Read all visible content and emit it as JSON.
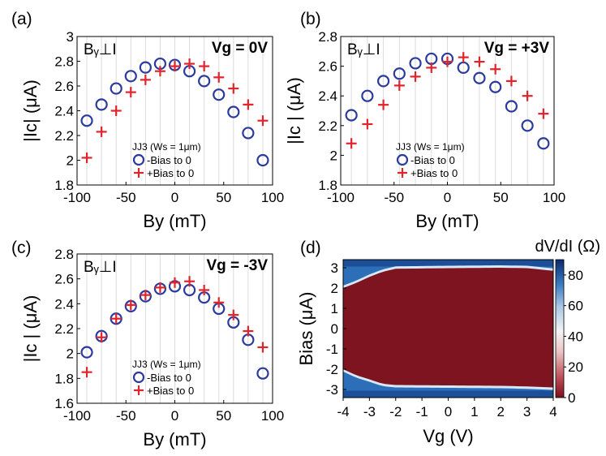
{
  "chart_data": [
    {
      "type": "scatter",
      "panel_label": "(a)",
      "annotation": "Bᵧ⊥I",
      "gate_label": "Vg = 0V",
      "legend_title": "JJ3 (Ws = 1μm)",
      "xlabel": "By (mT)",
      "ylabel": "|Ic| (μA)",
      "xlim": [
        -100,
        100
      ],
      "ylim": [
        1.8,
        3.0
      ],
      "xticks": [
        -100,
        -50,
        0,
        50,
        100
      ],
      "yticks": [
        1.8,
        2.0,
        2.2,
        2.4,
        2.6,
        2.8,
        3.0
      ],
      "ytick_labels": [
        "1.8",
        "2",
        "2.2",
        "2.4",
        "2.6",
        "2.8",
        "3"
      ],
      "series": [
        {
          "name": "-Bias to 0",
          "marker": "circle",
          "x": [
            -90,
            -75,
            -60,
            -45,
            -30,
            -15,
            0,
            15,
            30,
            45,
            60,
            75,
            90
          ],
          "y": [
            2.32,
            2.45,
            2.58,
            2.68,
            2.75,
            2.78,
            2.77,
            2.72,
            2.64,
            2.53,
            2.39,
            2.22,
            2.0
          ]
        },
        {
          "name": "+Bias to 0",
          "marker": "plus",
          "x": [
            -90,
            -75,
            -60,
            -45,
            -30,
            -15,
            0,
            15,
            30,
            45,
            60,
            75,
            90
          ],
          "y": [
            2.02,
            2.23,
            2.4,
            2.55,
            2.65,
            2.72,
            2.76,
            2.78,
            2.76,
            2.67,
            2.58,
            2.45,
            2.32
          ]
        }
      ]
    },
    {
      "type": "scatter",
      "panel_label": "(b)",
      "annotation": "Bᵧ⊥I",
      "gate_label": "Vg = +3V",
      "legend_title": "JJ3 (Ws = 1μm)",
      "xlabel": "By (mT)",
      "ylabel": "|Ic | (μA)",
      "xlim": [
        -100,
        100
      ],
      "ylim": [
        1.8,
        2.8
      ],
      "xticks": [
        -100,
        -50,
        0,
        50,
        100
      ],
      "yticks": [
        1.8,
        2.0,
        2.2,
        2.4,
        2.6,
        2.8
      ],
      "ytick_labels": [
        "1.8",
        "2",
        "2.2",
        "2.4",
        "2.6",
        "2.8"
      ],
      "series": [
        {
          "name": "-Bias to 0",
          "marker": "circle",
          "x": [
            -90,
            -75,
            -60,
            -45,
            -30,
            -15,
            0,
            15,
            30,
            45,
            60,
            75,
            90
          ],
          "y": [
            2.27,
            2.4,
            2.5,
            2.55,
            2.62,
            2.65,
            2.65,
            2.59,
            2.52,
            2.46,
            2.33,
            2.2,
            2.08
          ]
        },
        {
          "name": "+Bias to 0",
          "marker": "plus",
          "x": [
            -90,
            -75,
            -60,
            -45,
            -30,
            -15,
            0,
            15,
            30,
            45,
            60,
            75,
            90
          ],
          "y": [
            2.08,
            2.21,
            2.34,
            2.47,
            2.53,
            2.59,
            2.63,
            2.66,
            2.63,
            2.58,
            2.5,
            2.4,
            2.28
          ]
        }
      ]
    },
    {
      "type": "scatter",
      "panel_label": "(c)",
      "annotation": "Bᵧ⊥I",
      "gate_label": "Vg = -3V",
      "legend_title": "JJ3 (Ws = 1μm)",
      "xlabel": "By (mT)",
      "ylabel": "|Ic | (μA)",
      "xlim": [
        -100,
        100
      ],
      "ylim": [
        1.6,
        2.8
      ],
      "xticks": [
        -100,
        -50,
        0,
        50,
        100
      ],
      "yticks": [
        1.6,
        1.8,
        2.0,
        2.2,
        2.4,
        2.6,
        2.8
      ],
      "ytick_labels": [
        "1.6",
        "1.8",
        "2",
        "2.2",
        "2.4",
        "2.6",
        "2.8"
      ],
      "series": [
        {
          "name": "-Bias to 0",
          "marker": "circle",
          "x": [
            -90,
            -75,
            -60,
            -45,
            -30,
            -15,
            0,
            15,
            30,
            45,
            60,
            75,
            90
          ],
          "y": [
            2.01,
            2.14,
            2.28,
            2.38,
            2.46,
            2.52,
            2.54,
            2.51,
            2.45,
            2.36,
            2.25,
            2.11,
            1.84
          ]
        },
        {
          "name": "+Bias to 0",
          "marker": "plus",
          "x": [
            -90,
            -75,
            -60,
            -45,
            -30,
            -15,
            0,
            15,
            30,
            45,
            60,
            75,
            90
          ],
          "y": [
            1.85,
            2.13,
            2.28,
            2.39,
            2.47,
            2.53,
            2.57,
            2.58,
            2.51,
            2.41,
            2.31,
            2.18,
            2.05
          ]
        }
      ]
    },
    {
      "type": "heatmap",
      "panel_label": "(d)",
      "xlabel": "Vg (V)",
      "ylabel": "Bias (μA)",
      "colorbar_label": "dV/dI (Ω)",
      "xlim": [
        -4,
        4
      ],
      "ylim": [
        -3.4,
        3.4
      ],
      "xticks": [
        -4,
        -3,
        -2,
        -1,
        0,
        1,
        2,
        3,
        4
      ],
      "yticks": [
        -3,
        -2,
        -1,
        0,
        1,
        2,
        3
      ],
      "colorbar_ticks": [
        0,
        20,
        40,
        60,
        80
      ],
      "color_range": [
        0,
        90
      ],
      "superconducting_dV_dI": 2,
      "normal_dV_dI": 85,
      "switching_current_upper": [
        {
          "vg": -4.0,
          "ic": 2.0
        },
        {
          "vg": -3.5,
          "ic": 2.25
        },
        {
          "vg": -3.0,
          "ic": 2.55
        },
        {
          "vg": -2.5,
          "ic": 2.8
        },
        {
          "vg": -2.0,
          "ic": 2.95
        },
        {
          "vg": 0.0,
          "ic": 2.98
        },
        {
          "vg": 2.0,
          "ic": 3.0
        },
        {
          "vg": 3.0,
          "ic": 2.98
        },
        {
          "vg": 4.0,
          "ic": 2.85
        }
      ],
      "switching_current_lower": [
        {
          "vg": -4.0,
          "ic": -2.0
        },
        {
          "vg": -3.5,
          "ic": -2.3
        },
        {
          "vg": -3.0,
          "ic": -2.5
        },
        {
          "vg": -2.5,
          "ic": -2.72
        },
        {
          "vg": -2.0,
          "ic": -2.78
        },
        {
          "vg": 0.0,
          "ic": -2.8
        },
        {
          "vg": 2.0,
          "ic": -2.82
        },
        {
          "vg": 3.0,
          "ic": -2.85
        },
        {
          "vg": 4.0,
          "ic": -2.9
        }
      ]
    }
  ]
}
